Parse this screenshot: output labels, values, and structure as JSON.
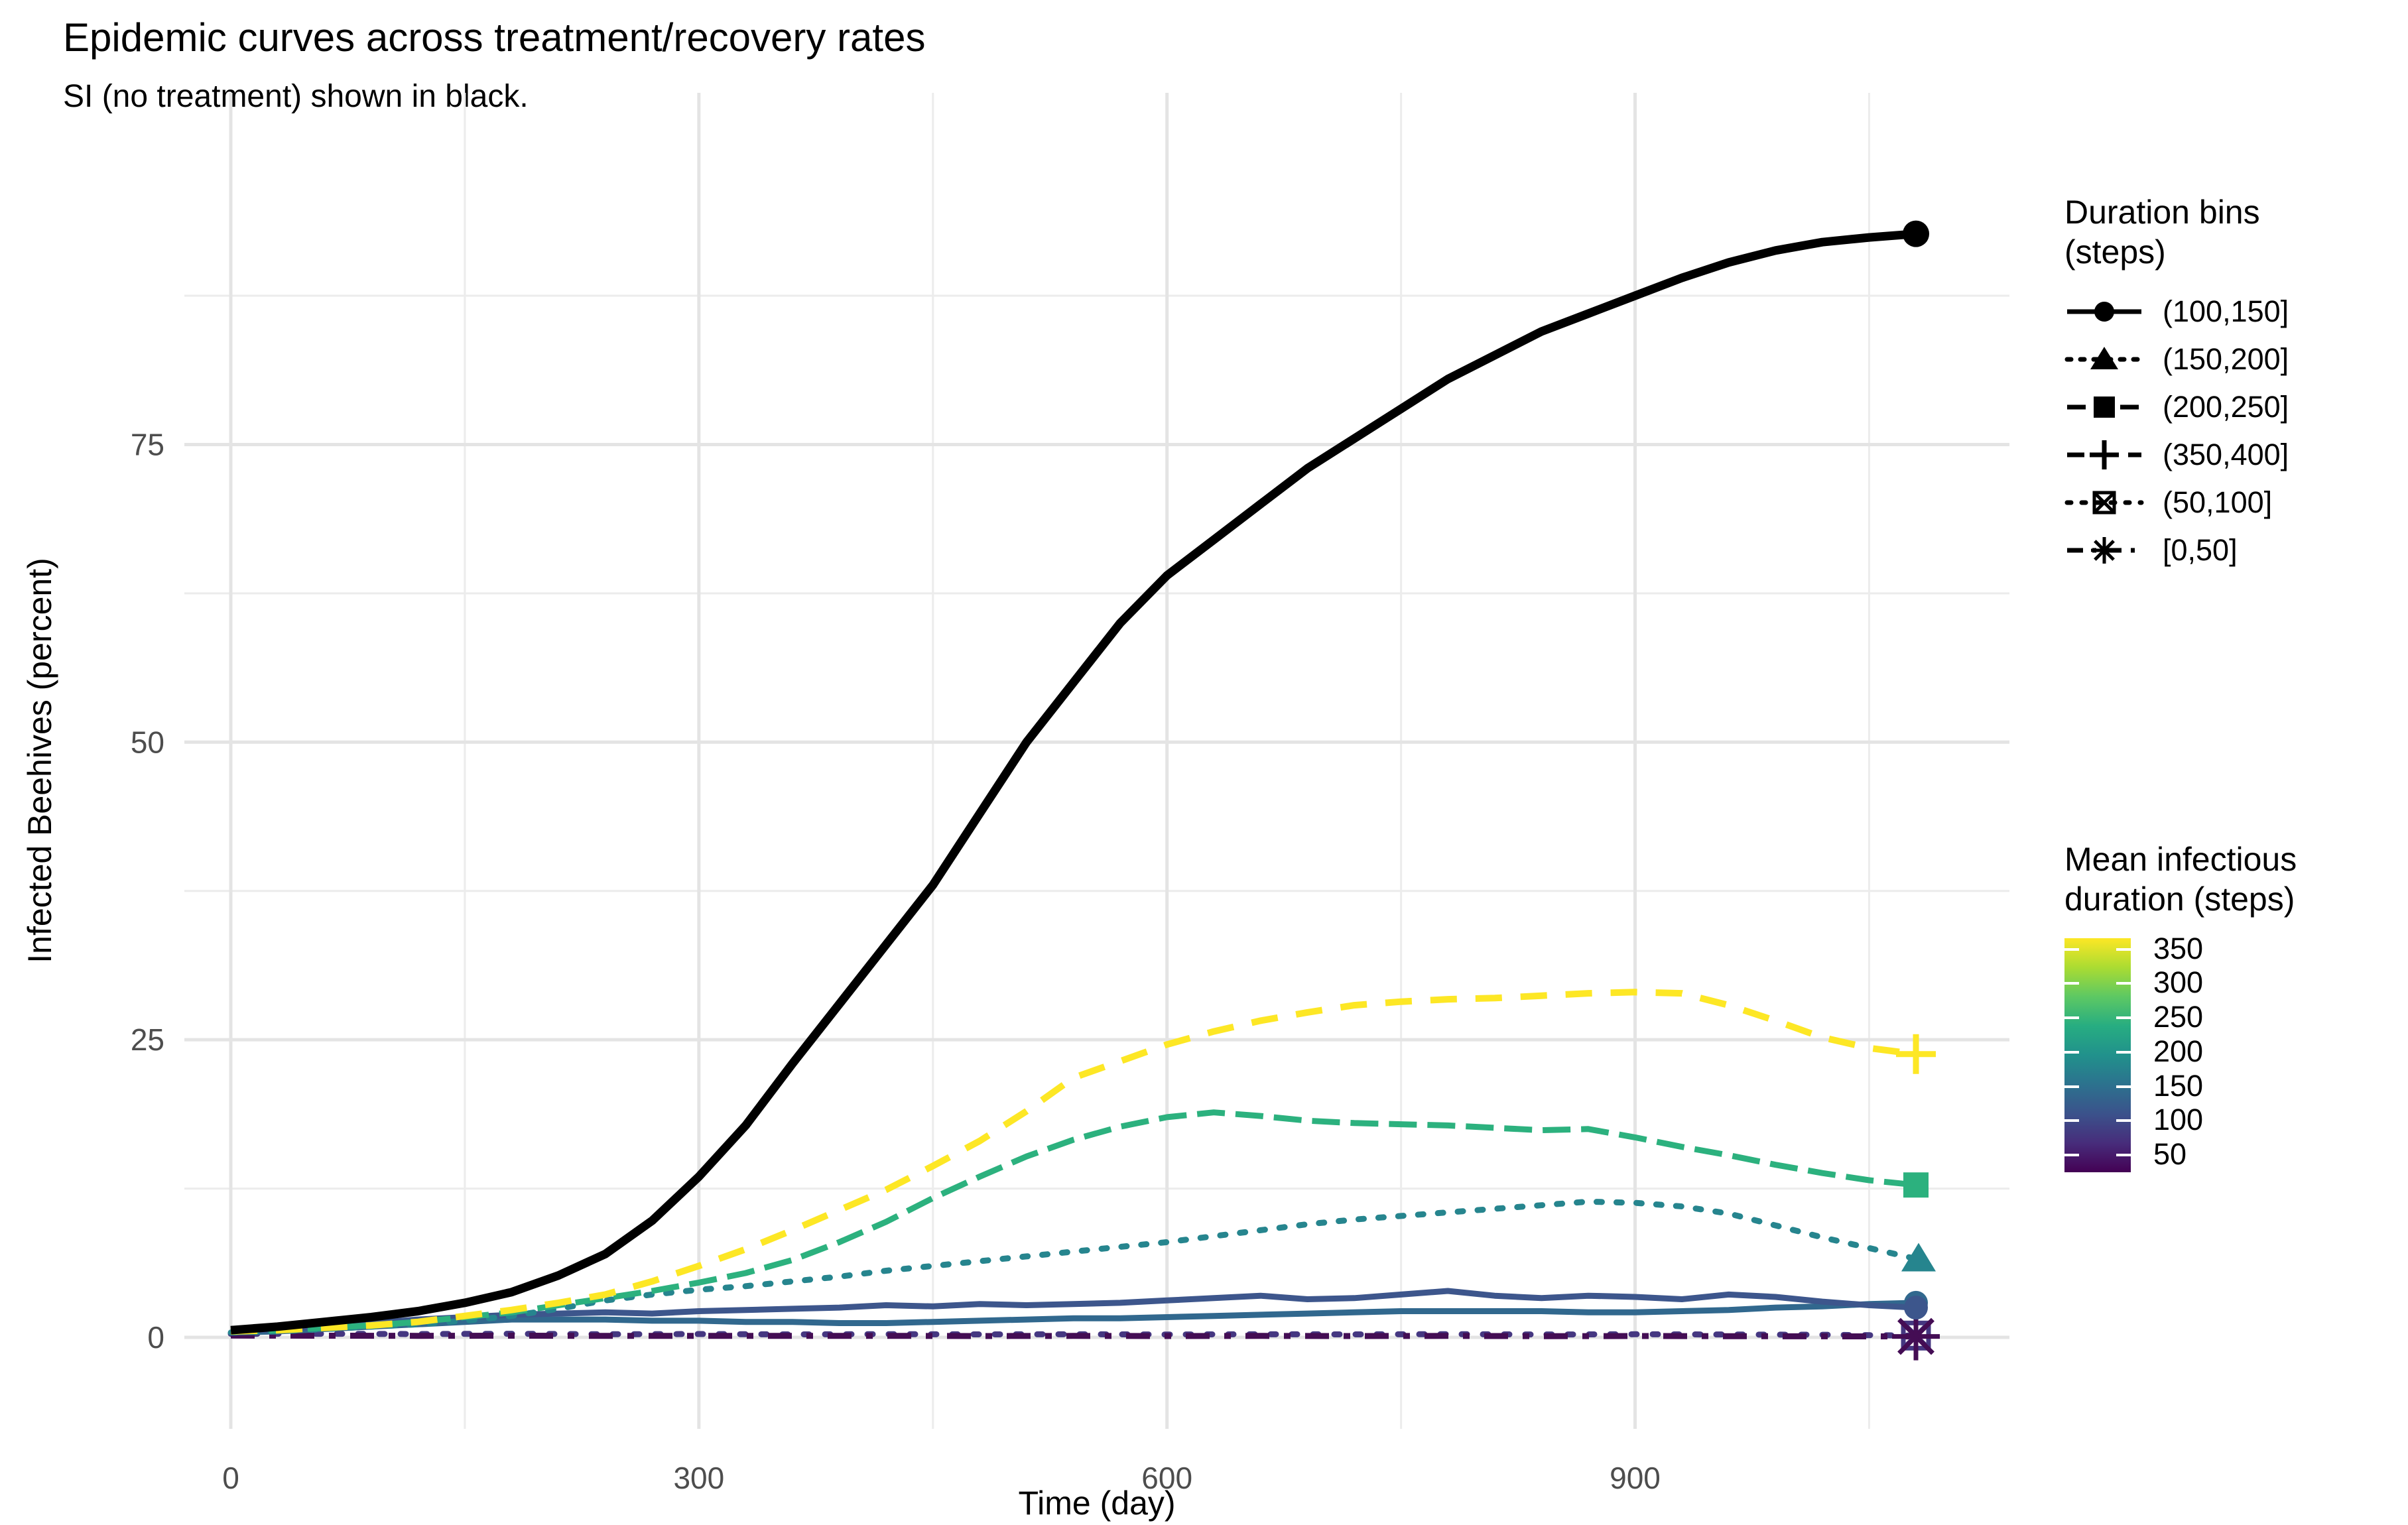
{
  "title": "Epidemic curves across treatment/recovery rates",
  "subtitle": "SI (no treatment) shown in black.",
  "x_axis": {
    "label": "Time (day)",
    "ticks": [
      "0",
      "300",
      "600",
      "900"
    ]
  },
  "y_axis": {
    "label": "Infected Beehives (percent)",
    "ticks": [
      "0",
      "25",
      "50",
      "75"
    ]
  },
  "shape_legend": {
    "title_line1": "Duration bins",
    "title_line2": "(steps)",
    "items": [
      {
        "label": "(100,150]",
        "marker": "circle",
        "linetype": "solid"
      },
      {
        "label": "(150,200]",
        "marker": "triangle",
        "linetype": "dots"
      },
      {
        "label": "(200,250]",
        "marker": "square",
        "linetype": "dash"
      },
      {
        "label": "(350,400]",
        "marker": "plus",
        "linetype": "longdash"
      },
      {
        "label": "(50,100]",
        "marker": "boxx",
        "linetype": "smalldots"
      },
      {
        "label": "[0,50]",
        "marker": "star8",
        "linetype": "dashdot"
      }
    ]
  },
  "color_legend": {
    "title_line1": "Mean infectious",
    "title_line2": "duration (steps)",
    "ticks": [
      "350",
      "300",
      "250",
      "200",
      "150",
      "100",
      "50"
    ],
    "tick_values": [
      350,
      300,
      250,
      200,
      150,
      100,
      50
    ],
    "domain": [
      25,
      366
    ],
    "gradient_top_to_bottom": [
      "#FDE725",
      "#AADC32",
      "#5DC863",
      "#27AD81",
      "#21918C",
      "#2C728E",
      "#3B528B",
      "#472D7B",
      "#440154"
    ]
  },
  "chart_data": {
    "type": "line",
    "title": "Epidemic curves across treatment/recovery rates",
    "subtitle": "SI (no treatment) shown in black.",
    "xlabel": "Time (day)",
    "ylabel": "Infected Beehives (percent)",
    "xlim": [
      -30,
      1140
    ],
    "ylim": [
      -7.7,
      104.6
    ],
    "x_ticks": [
      0,
      300,
      600,
      900
    ],
    "y_ticks": [
      0,
      25,
      50,
      75
    ],
    "x_minor_ticks": [
      150,
      450,
      750,
      1050
    ],
    "y_minor_ticks": [
      12.5,
      37.5,
      62.5,
      87.5
    ],
    "grid": "on",
    "legend_position": "right",
    "series": [
      {
        "name": "(50,100] run",
        "bin": "(50,100]",
        "color": "#453781",
        "linetype": "smalldots",
        "marker": "boxx",
        "width": 9,
        "points": [
          [
            0,
            0.3
          ],
          [
            60,
            0.3
          ],
          [
            120,
            0.28
          ],
          [
            180,
            0.3
          ],
          [
            240,
            0.26
          ],
          [
            300,
            0.28
          ],
          [
            360,
            0.25
          ],
          [
            420,
            0.27
          ],
          [
            480,
            0.25
          ],
          [
            540,
            0.26
          ],
          [
            600,
            0.24
          ],
          [
            660,
            0.26
          ],
          [
            720,
            0.25
          ],
          [
            780,
            0.27
          ],
          [
            840,
            0.24
          ],
          [
            900,
            0.26
          ],
          [
            960,
            0.24
          ],
          [
            1020,
            0.22
          ],
          [
            1080,
            0.15
          ]
        ]
      },
      {
        "name": "[0,50] run",
        "bin": "[0,50]",
        "color": "#440D54",
        "linetype": "dashdot",
        "marker": "star8",
        "width": 9,
        "points": [
          [
            0,
            0.15
          ],
          [
            60,
            0.14
          ],
          [
            120,
            0.13
          ],
          [
            180,
            0.14
          ],
          [
            240,
            0.12
          ],
          [
            300,
            0.13
          ],
          [
            360,
            0.12
          ],
          [
            420,
            0.13
          ],
          [
            480,
            0.11
          ],
          [
            540,
            0.12
          ],
          [
            600,
            0.11
          ],
          [
            660,
            0.12
          ],
          [
            720,
            0.11
          ],
          [
            780,
            0.12
          ],
          [
            840,
            0.1
          ],
          [
            900,
            0.11
          ],
          [
            960,
            0.1
          ],
          [
            1020,
            0.09
          ],
          [
            1080,
            0.08
          ]
        ]
      },
      {
        "name": "(100,150] run b",
        "bin": "(100,150]",
        "color": "#31688E",
        "linetype": "solid",
        "marker": "circle",
        "width": 9,
        "points": [
          [
            0,
            0.4
          ],
          [
            30,
            0.5
          ],
          [
            60,
            0.7
          ],
          [
            90,
            0.9
          ],
          [
            120,
            1.1
          ],
          [
            150,
            1.3
          ],
          [
            180,
            1.5
          ],
          [
            210,
            1.5
          ],
          [
            240,
            1.5
          ],
          [
            270,
            1.4
          ],
          [
            300,
            1.4
          ],
          [
            330,
            1.3
          ],
          [
            360,
            1.3
          ],
          [
            390,
            1.2
          ],
          [
            420,
            1.2
          ],
          [
            450,
            1.3
          ],
          [
            480,
            1.4
          ],
          [
            510,
            1.5
          ],
          [
            540,
            1.6
          ],
          [
            570,
            1.6
          ],
          [
            600,
            1.7
          ],
          [
            630,
            1.8
          ],
          [
            660,
            1.9
          ],
          [
            690,
            2.0
          ],
          [
            720,
            2.1
          ],
          [
            750,
            2.2
          ],
          [
            780,
            2.2
          ],
          [
            810,
            2.2
          ],
          [
            840,
            2.2
          ],
          [
            870,
            2.1
          ],
          [
            900,
            2.1
          ],
          [
            930,
            2.2
          ],
          [
            960,
            2.3
          ],
          [
            990,
            2.5
          ],
          [
            1020,
            2.6
          ],
          [
            1050,
            2.8
          ],
          [
            1080,
            2.9
          ]
        ]
      },
      {
        "name": "(100,150] run a",
        "bin": "(100,150]",
        "color": "#3D568C",
        "linetype": "solid",
        "marker": "circle",
        "width": 9,
        "points": [
          [
            0,
            0.5
          ],
          [
            30,
            0.7
          ],
          [
            60,
            0.9
          ],
          [
            90,
            1.2
          ],
          [
            120,
            1.5
          ],
          [
            150,
            1.7
          ],
          [
            180,
            1.9
          ],
          [
            210,
            2.0
          ],
          [
            240,
            2.1
          ],
          [
            270,
            2.0
          ],
          [
            300,
            2.2
          ],
          [
            330,
            2.3
          ],
          [
            360,
            2.4
          ],
          [
            390,
            2.5
          ],
          [
            420,
            2.7
          ],
          [
            450,
            2.6
          ],
          [
            480,
            2.8
          ],
          [
            510,
            2.7
          ],
          [
            540,
            2.8
          ],
          [
            570,
            2.9
          ],
          [
            600,
            3.1
          ],
          [
            630,
            3.3
          ],
          [
            660,
            3.5
          ],
          [
            690,
            3.2
          ],
          [
            720,
            3.3
          ],
          [
            750,
            3.6
          ],
          [
            780,
            3.9
          ],
          [
            810,
            3.5
          ],
          [
            840,
            3.3
          ],
          [
            870,
            3.5
          ],
          [
            900,
            3.4
          ],
          [
            930,
            3.2
          ],
          [
            960,
            3.6
          ],
          [
            990,
            3.4
          ],
          [
            1020,
            3.0
          ],
          [
            1050,
            2.7
          ],
          [
            1080,
            2.5
          ]
        ]
      },
      {
        "name": "(150,200] run",
        "bin": "(150,200]",
        "color": "#26858E",
        "linetype": "dots",
        "marker": "triangle",
        "width": 9,
        "points": [
          [
            0,
            0.4
          ],
          [
            30,
            0.5
          ],
          [
            60,
            0.7
          ],
          [
            90,
            0.9
          ],
          [
            120,
            1.1
          ],
          [
            150,
            1.4
          ],
          [
            180,
            1.8
          ],
          [
            210,
            2.4
          ],
          [
            240,
            3.1
          ],
          [
            270,
            3.6
          ],
          [
            300,
            4.0
          ],
          [
            330,
            4.3
          ],
          [
            360,
            4.7
          ],
          [
            390,
            5.1
          ],
          [
            420,
            5.6
          ],
          [
            450,
            6.0
          ],
          [
            480,
            6.4
          ],
          [
            510,
            6.8
          ],
          [
            540,
            7.2
          ],
          [
            570,
            7.6
          ],
          [
            600,
            8.0
          ],
          [
            630,
            8.5
          ],
          [
            660,
            9.0
          ],
          [
            690,
            9.5
          ],
          [
            720,
            9.9
          ],
          [
            750,
            10.2
          ],
          [
            780,
            10.5
          ],
          [
            810,
            10.8
          ],
          [
            840,
            11.1
          ],
          [
            870,
            11.4
          ],
          [
            900,
            11.3
          ],
          [
            930,
            11.0
          ],
          [
            960,
            10.4
          ],
          [
            990,
            9.4
          ],
          [
            1020,
            8.4
          ],
          [
            1050,
            7.5
          ],
          [
            1080,
            6.6
          ]
        ]
      },
      {
        "name": "(200,250] run",
        "bin": "(200,250]",
        "color": "#2CB17E",
        "linetype": "dash",
        "marker": "square",
        "width": 9,
        "points": [
          [
            0,
            0.5
          ],
          [
            30,
            0.6
          ],
          [
            60,
            0.8
          ],
          [
            90,
            1.0
          ],
          [
            120,
            1.3
          ],
          [
            150,
            1.7
          ],
          [
            180,
            2.1
          ],
          [
            210,
            2.7
          ],
          [
            240,
            3.3
          ],
          [
            270,
            3.9
          ],
          [
            300,
            4.6
          ],
          [
            330,
            5.4
          ],
          [
            360,
            6.5
          ],
          [
            390,
            8.0
          ],
          [
            420,
            9.7
          ],
          [
            450,
            11.7
          ],
          [
            480,
            13.5
          ],
          [
            510,
            15.2
          ],
          [
            540,
            16.6
          ],
          [
            570,
            17.7
          ],
          [
            600,
            18.5
          ],
          [
            630,
            18.9
          ],
          [
            660,
            18.6
          ],
          [
            690,
            18.2
          ],
          [
            720,
            18.0
          ],
          [
            750,
            17.9
          ],
          [
            780,
            17.8
          ],
          [
            810,
            17.6
          ],
          [
            840,
            17.4
          ],
          [
            870,
            17.5
          ],
          [
            900,
            16.8
          ],
          [
            930,
            16.0
          ],
          [
            960,
            15.3
          ],
          [
            990,
            14.5
          ],
          [
            1020,
            13.8
          ],
          [
            1050,
            13.2
          ],
          [
            1080,
            12.8
          ]
        ]
      },
      {
        "name": "(350,400] run",
        "bin": "(350,400]",
        "color": "#FDE725",
        "linetype": "longdash",
        "marker": "plus",
        "width": 10,
        "points": [
          [
            0,
            0.5
          ],
          [
            30,
            0.6
          ],
          [
            60,
            0.8
          ],
          [
            90,
            1.0
          ],
          [
            120,
            1.3
          ],
          [
            150,
            1.8
          ],
          [
            180,
            2.3
          ],
          [
            210,
            2.9
          ],
          [
            240,
            3.6
          ],
          [
            270,
            4.7
          ],
          [
            300,
            6.0
          ],
          [
            330,
            7.4
          ],
          [
            360,
            9.0
          ],
          [
            390,
            10.7
          ],
          [
            420,
            12.4
          ],
          [
            450,
            14.4
          ],
          [
            480,
            16.5
          ],
          [
            510,
            19.0
          ],
          [
            540,
            21.8
          ],
          [
            570,
            23.2
          ],
          [
            600,
            24.6
          ],
          [
            630,
            25.7
          ],
          [
            660,
            26.6
          ],
          [
            690,
            27.3
          ],
          [
            720,
            27.9
          ],
          [
            750,
            28.2
          ],
          [
            780,
            28.4
          ],
          [
            810,
            28.5
          ],
          [
            840,
            28.7
          ],
          [
            870,
            28.9
          ],
          [
            900,
            29.0
          ],
          [
            930,
            28.9
          ],
          [
            960,
            27.9
          ],
          [
            990,
            26.6
          ],
          [
            1020,
            25.2
          ],
          [
            1050,
            24.3
          ],
          [
            1080,
            23.8
          ]
        ]
      },
      {
        "name": "SI (no treatment)",
        "bin": "none",
        "color": "#000000",
        "linetype": "solid",
        "marker": "circle",
        "width": 13,
        "points": [
          [
            0,
            0.6
          ],
          [
            30,
            0.9
          ],
          [
            60,
            1.3
          ],
          [
            90,
            1.7
          ],
          [
            120,
            2.2
          ],
          [
            150,
            2.9
          ],
          [
            180,
            3.8
          ],
          [
            210,
            5.2
          ],
          [
            240,
            7.0
          ],
          [
            270,
            9.8
          ],
          [
            300,
            13.5
          ],
          [
            330,
            17.8
          ],
          [
            360,
            23.0
          ],
          [
            390,
            28.0
          ],
          [
            420,
            33.0
          ],
          [
            450,
            38.0
          ],
          [
            480,
            44.0
          ],
          [
            510,
            50.0
          ],
          [
            540,
            55.0
          ],
          [
            570,
            60.0
          ],
          [
            600,
            64.0
          ],
          [
            630,
            67.0
          ],
          [
            660,
            70.0
          ],
          [
            690,
            73.0
          ],
          [
            720,
            75.5
          ],
          [
            750,
            78.0
          ],
          [
            780,
            80.5
          ],
          [
            810,
            82.5
          ],
          [
            840,
            84.5
          ],
          [
            870,
            86.0
          ],
          [
            900,
            87.5
          ],
          [
            930,
            89.0
          ],
          [
            960,
            90.3
          ],
          [
            990,
            91.3
          ],
          [
            1020,
            92.0
          ],
          [
            1050,
            92.4
          ],
          [
            1080,
            92.7
          ]
        ]
      }
    ]
  }
}
